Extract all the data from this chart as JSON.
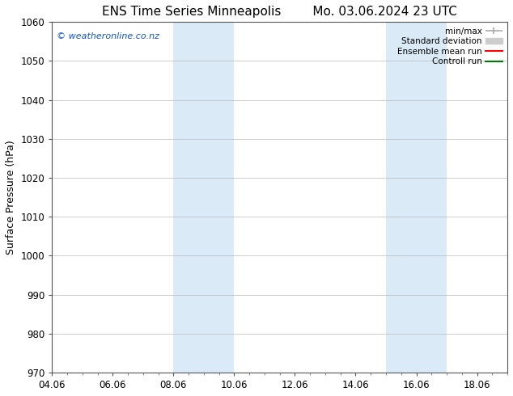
{
  "title_left": "ENS Time Series Minneapolis",
  "title_right": "Mo. 03.06.2024 23 UTC",
  "ylabel": "Surface Pressure (hPa)",
  "ylim": [
    970,
    1060
  ],
  "yticks": [
    970,
    980,
    990,
    1000,
    1010,
    1020,
    1030,
    1040,
    1050,
    1060
  ],
  "xlim_start": 4.06,
  "xlim_end": 19.06,
  "xtick_labels": [
    "04.06",
    "06.06",
    "08.06",
    "10.06",
    "12.06",
    "14.06",
    "16.06",
    "18.06"
  ],
  "xtick_positions": [
    4.06,
    6.06,
    8.06,
    10.06,
    12.06,
    14.06,
    16.06,
    18.06
  ],
  "shaded_bands": [
    {
      "x_start": 8.06,
      "x_end": 10.06,
      "color": "#daeaf7"
    },
    {
      "x_start": 15.06,
      "x_end": 17.06,
      "color": "#daeaf7"
    }
  ],
  "watermark_text": "© weatheronline.co.nz",
  "watermark_color": "#1155cc",
  "background_color": "#ffffff",
  "legend_items": [
    {
      "label": "min/max",
      "color": "#aaaaaa",
      "lw": 1.2
    },
    {
      "label": "Standard deviation",
      "color": "#cccccc",
      "lw": 8
    },
    {
      "label": "Ensemble mean run",
      "color": "#ff0000",
      "lw": 1.5
    },
    {
      "label": "Controll run",
      "color": "#007700",
      "lw": 1.5
    }
  ],
  "grid_color": "#bbbbbb",
  "title_fontsize": 11,
  "tick_fontsize": 8.5,
  "ylabel_fontsize": 9
}
